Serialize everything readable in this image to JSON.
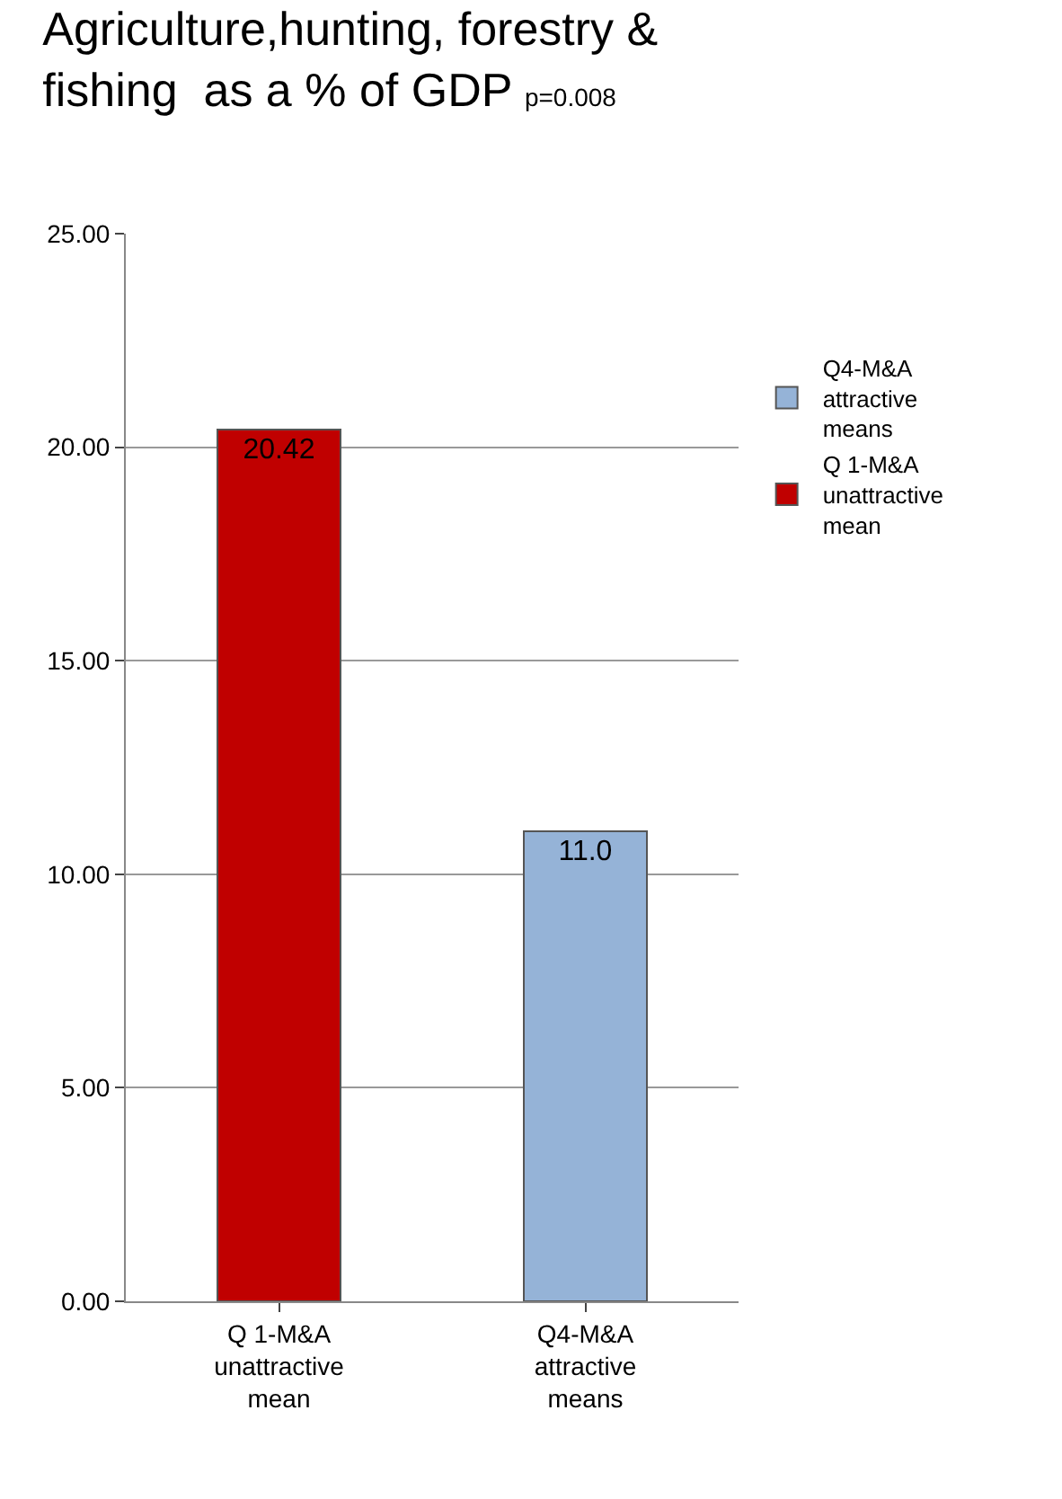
{
  "chart_data": {
    "type": "bar",
    "title": "Agriculture,hunting, forestry & fishing  as a % of GDP",
    "subtitle": "p=0.008",
    "categories": [
      "Q 1-M&A unattractive mean",
      "Q4-M&A attractive means"
    ],
    "series": [
      {
        "name": "Q 1-M&A unattractive mean",
        "color": "#c00000",
        "values": [
          20.42,
          null
        ],
        "value_labels": [
          "20.42",
          null
        ]
      },
      {
        "name": "Q4-M&A attractive means",
        "color": "#95b3d7",
        "values": [
          null,
          11.0
        ],
        "value_labels": [
          null,
          "11.0"
        ]
      }
    ],
    "stacked": true,
    "ylim": [
      0,
      25
    ],
    "yticks": [
      {
        "value": 0,
        "label": "0.00"
      },
      {
        "value": 5,
        "label": "5.00"
      },
      {
        "value": 10,
        "label": "10.00"
      },
      {
        "value": 15,
        "label": "15.00"
      },
      {
        "value": 20,
        "label": "20.00"
      },
      {
        "value": 25,
        "label": "25.00"
      }
    ],
    "grid": "y",
    "legend": "right"
  }
}
